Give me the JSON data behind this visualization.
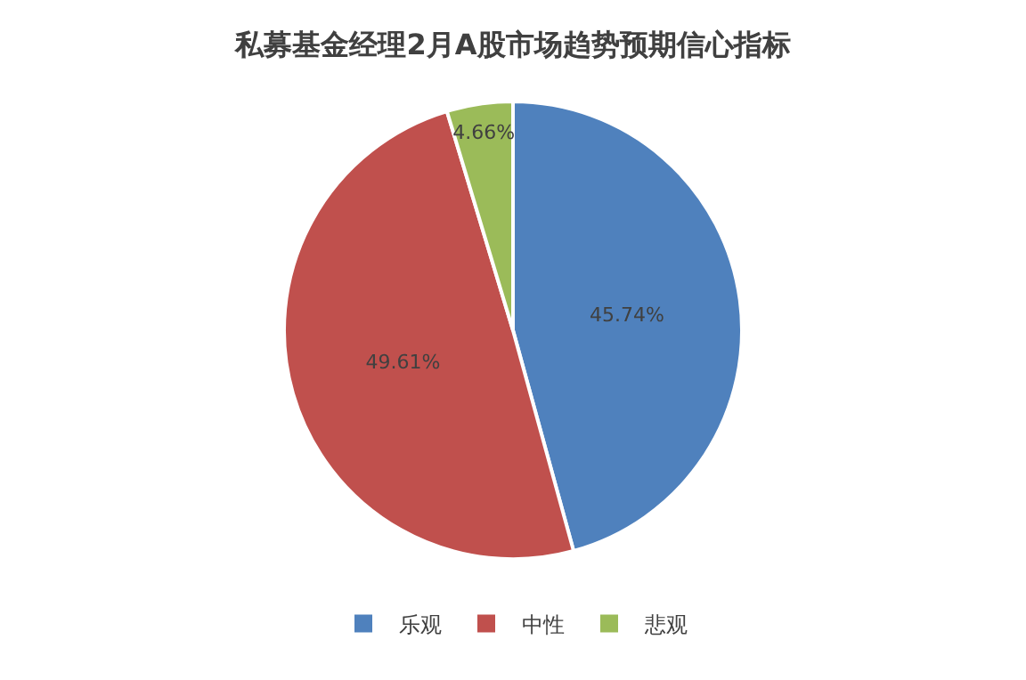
{
  "chart_data": {
    "type": "pie",
    "title": "私募基金经理2月A股市场趋势预期信心指标",
    "categories": [
      "乐观",
      "中性",
      "悲观"
    ],
    "values": [
      45.74,
      49.61,
      4.66
    ],
    "colors": [
      "#4f81bd",
      "#c0504d",
      "#9bbb59"
    ],
    "value_labels": [
      "45.74%",
      "49.61%",
      "4.66%"
    ],
    "legend": "bottom"
  }
}
